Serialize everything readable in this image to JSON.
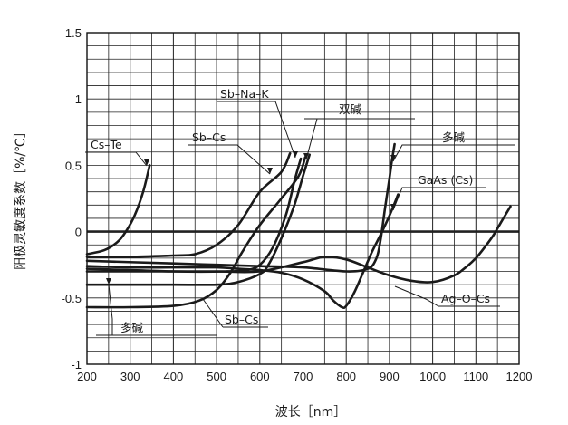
{
  "chart_data": {
    "type": "line",
    "xlabel": "波长［nm］",
    "ylabel": "阳极灵敏度系数［%/℃］",
    "xlim": [
      200,
      1200
    ],
    "ylim": [
      -1,
      1.5
    ],
    "x_ticks": [
      "200",
      "300",
      "400",
      "500",
      "600",
      "700",
      "800",
      "900",
      "1000",
      "1100",
      "1200"
    ],
    "y_ticks": [
      "1.5",
      "1",
      "0.5",
      "0",
      "-0.5",
      "-1"
    ],
    "grid": true,
    "series": [
      {
        "name": "Cs–Te",
        "x": [
          200,
          240,
          270,
          290,
          310,
          330,
          345
        ],
        "y": [
          -0.17,
          -0.14,
          -0.08,
          0.0,
          0.12,
          0.3,
          0.5
        ]
      },
      {
        "name": "Sb–Na–K",
        "x": [
          200,
          300,
          400,
          520,
          570,
          600,
          630,
          660,
          680,
          695
        ],
        "y": [
          -0.28,
          -0.29,
          -0.3,
          -0.3,
          -0.29,
          -0.25,
          -0.12,
          0.12,
          0.38,
          0.55
        ]
      },
      {
        "name": "Sb–Cs (upper)",
        "x": [
          200,
          300,
          400,
          450,
          500,
          550,
          600,
          650,
          670
        ],
        "y": [
          -0.19,
          -0.19,
          -0.18,
          -0.17,
          -0.1,
          0.05,
          0.3,
          0.45,
          0.59
        ]
      },
      {
        "name": "Sb–Cs (lower)",
        "x": [
          200,
          300,
          400,
          460,
          500,
          530,
          560,
          600,
          650,
          690,
          705
        ],
        "y": [
          -0.57,
          -0.57,
          -0.56,
          -0.52,
          -0.44,
          -0.32,
          -0.15,
          0.05,
          0.25,
          0.42,
          0.56
        ]
      },
      {
        "name": "双碱",
        "x": [
          200,
          300,
          400,
          500,
          550,
          600,
          620,
          650,
          680,
          700,
          715
        ],
        "y": [
          -0.4,
          -0.4,
          -0.4,
          -0.4,
          -0.38,
          -0.32,
          -0.25,
          -0.05,
          0.2,
          0.42,
          0.58
        ]
      },
      {
        "name": "多碱",
        "x": [
          200,
          400,
          500,
          600,
          700,
          800,
          850,
          870,
          880,
          890,
          900,
          905,
          912
        ],
        "y": [
          -0.22,
          -0.24,
          -0.25,
          -0.26,
          -0.27,
          -0.3,
          -0.28,
          -0.2,
          -0.05,
          0.18,
          0.4,
          0.52,
          0.66
        ]
      },
      {
        "name": "GaAs (Cs)",
        "x": [
          200,
          300,
          400,
          500,
          550,
          600,
          650,
          700,
          750,
          770,
          790,
          800,
          820,
          840,
          860,
          880,
          900,
          920
        ],
        "y": [
          -0.26,
          -0.27,
          -0.27,
          -0.27,
          -0.28,
          -0.29,
          -0.31,
          -0.36,
          -0.45,
          -0.52,
          -0.57,
          -0.56,
          -0.45,
          -0.3,
          -0.15,
          -0.02,
          0.12,
          0.28
        ]
      },
      {
        "name": "Ag–O–Cs",
        "x": [
          200,
          300,
          400,
          500,
          600,
          700,
          750,
          800,
          850,
          900,
          950,
          1000,
          1050,
          1080,
          1100,
          1120,
          1140,
          1160,
          1180
        ],
        "y": [
          -0.3,
          -0.3,
          -0.3,
          -0.3,
          -0.3,
          -0.23,
          -0.19,
          -0.21,
          -0.27,
          -0.33,
          -0.37,
          -0.38,
          -0.33,
          -0.26,
          -0.2,
          -0.12,
          -0.03,
          0.08,
          0.19
        ]
      }
    ],
    "annotations": [
      {
        "text": "Sb–Na–K"
      },
      {
        "text": "双碱"
      },
      {
        "text": "Sb–Cs"
      },
      {
        "text": "多碱"
      },
      {
        "text": "Cs–Te"
      },
      {
        "text": "GaAs (Cs)"
      },
      {
        "text": "Ag–O–Cs"
      },
      {
        "text": "多碱"
      },
      {
        "text": "Sb–Cs"
      }
    ]
  }
}
